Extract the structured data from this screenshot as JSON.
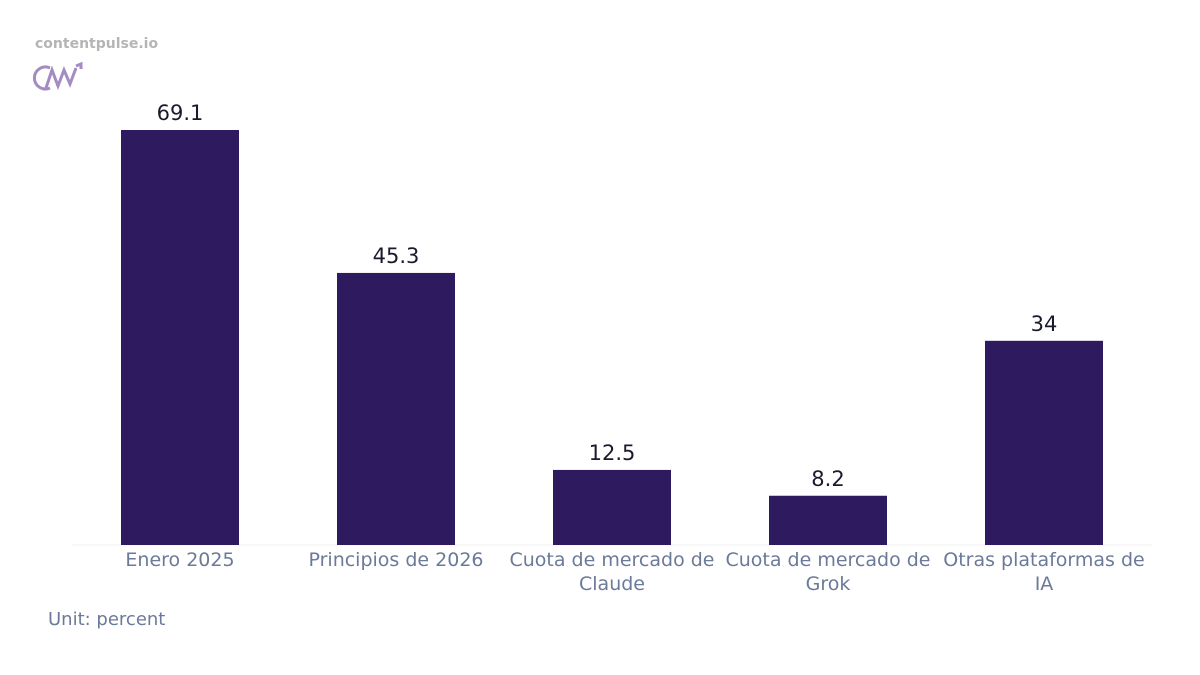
{
  "brand": "contentpulse.io",
  "chart_data": {
    "type": "bar",
    "categories": [
      "Enero 2025",
      "Principios de 2026",
      "Cuota de mercado de Claude",
      "Cuota de mercado de Grok",
      "Otras plataformas de IA"
    ],
    "values": [
      69.1,
      45.3,
      12.5,
      8.2,
      34
    ],
    "color": "#2e1a5e",
    "note": "Unit: percent"
  }
}
